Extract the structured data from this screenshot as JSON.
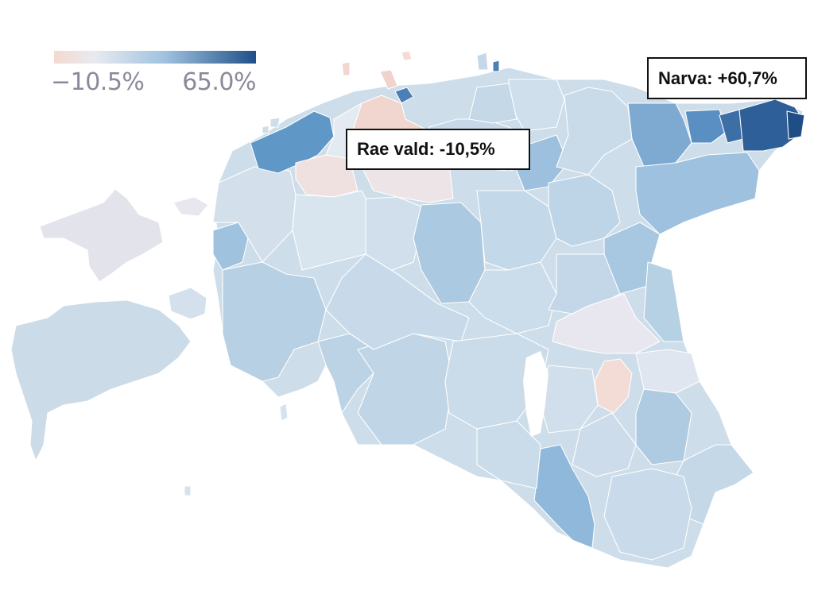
{
  "legend": {
    "min_label": "−10.5%",
    "max_label": "65.0%",
    "min_value": -10.5,
    "max_value": 65.0,
    "colors": {
      "low": "#f1d8cf",
      "mid": "#e5eaf1",
      "light_blue": "#a6c7e0",
      "high": "#1e4f87"
    }
  },
  "callouts": {
    "rae": {
      "text": "Rae vald: -10,5%",
      "value": -10.5
    },
    "narva": {
      "text": "Narva: +60,7%",
      "value": 60.7
    }
  },
  "map": {
    "land_color": "#c9dbe9",
    "border_color": "#ffffff"
  }
}
